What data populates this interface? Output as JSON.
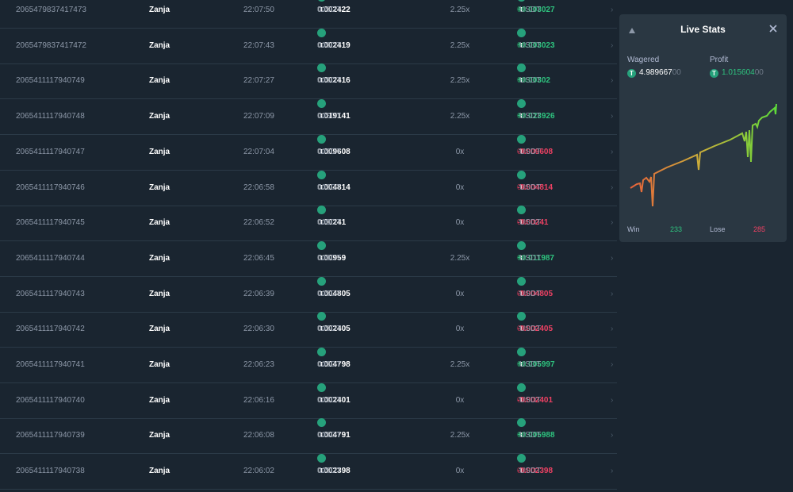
{
  "table": {
    "currency": "USDT",
    "rows": [
      {
        "id": "2065479837417473",
        "user": "Zanja",
        "time": "22:07:50",
        "bet": [
          "0.002422",
          "00"
        ],
        "multiplier": "2.25x",
        "payout": [
          "+0.003027",
          "00"
        ]
      },
      {
        "id": "2065479837417472",
        "user": "Zanja",
        "time": "22:07:43",
        "bet": [
          "0.002419",
          "00"
        ],
        "multiplier": "2.25x",
        "payout": [
          "+0.003023",
          "00"
        ]
      },
      {
        "id": "2065411117940749",
        "user": "Zanja",
        "time": "22:07:27",
        "bet": [
          "0.002416",
          "00"
        ],
        "multiplier": "2.25x",
        "payout": [
          "+0.00302",
          "000"
        ]
      },
      {
        "id": "2065411117940748",
        "user": "Zanja",
        "time": "22:07:09",
        "bet": [
          "0.019141",
          "00"
        ],
        "multiplier": "2.25x",
        "payout": [
          "+0.023926",
          "00"
        ]
      },
      {
        "id": "2065411117940747",
        "user": "Zanja",
        "time": "22:07:04",
        "bet": [
          "0.009608",
          "00"
        ],
        "multiplier": "0x",
        "payout": [
          "-0.009608",
          "00"
        ]
      },
      {
        "id": "2065411117940746",
        "user": "Zanja",
        "time": "22:06:58",
        "bet": [
          "0.004814",
          "00"
        ],
        "multiplier": "0x",
        "payout": [
          "-0.004814",
          "00"
        ]
      },
      {
        "id": "2065411117940745",
        "user": "Zanja",
        "time": "22:06:52",
        "bet": [
          "0.00241",
          "000"
        ],
        "multiplier": "0x",
        "payout": [
          "-0.00241",
          "000"
        ]
      },
      {
        "id": "2065411117940744",
        "user": "Zanja",
        "time": "22:06:45",
        "bet": [
          "0.00959",
          "000"
        ],
        "multiplier": "2.25x",
        "payout": [
          "+0.011987",
          "00"
        ]
      },
      {
        "id": "2065411117940743",
        "user": "Zanja",
        "time": "22:06:39",
        "bet": [
          "0.004805",
          "00"
        ],
        "multiplier": "0x",
        "payout": [
          "-0.004805",
          "00"
        ]
      },
      {
        "id": "2065411117940742",
        "user": "Zanja",
        "time": "22:06:30",
        "bet": [
          "0.002405",
          "00"
        ],
        "multiplier": "0x",
        "payout": [
          "-0.002405",
          "00"
        ]
      },
      {
        "id": "2065411117940741",
        "user": "Zanja",
        "time": "22:06:23",
        "bet": [
          "0.004798",
          "00"
        ],
        "multiplier": "2.25x",
        "payout": [
          "+0.005997",
          "00"
        ]
      },
      {
        "id": "2065411117940740",
        "user": "Zanja",
        "time": "22:06:16",
        "bet": [
          "0.002401",
          "00"
        ],
        "multiplier": "0x",
        "payout": [
          "-0.002401",
          "00"
        ]
      },
      {
        "id": "2065411117940739",
        "user": "Zanja",
        "time": "22:06:08",
        "bet": [
          "0.004791",
          "00"
        ],
        "multiplier": "2.25x",
        "payout": [
          "+0.005988",
          "00"
        ]
      },
      {
        "id": "2065411117940738",
        "user": "Zanja",
        "time": "22:06:02",
        "bet": [
          "0.002398",
          "00"
        ],
        "multiplier": "0x",
        "payout": [
          "-0.002398",
          "00"
        ]
      }
    ]
  },
  "stats": {
    "title": "Live Stats",
    "wagered_label": "Wagered",
    "wagered": [
      "4.989667",
      "00"
    ],
    "profit_label": "Profit",
    "profit": [
      "1.015604",
      "00"
    ],
    "win_label": "Win",
    "win": "233",
    "lose_label": "Lose",
    "lose": "285"
  }
}
